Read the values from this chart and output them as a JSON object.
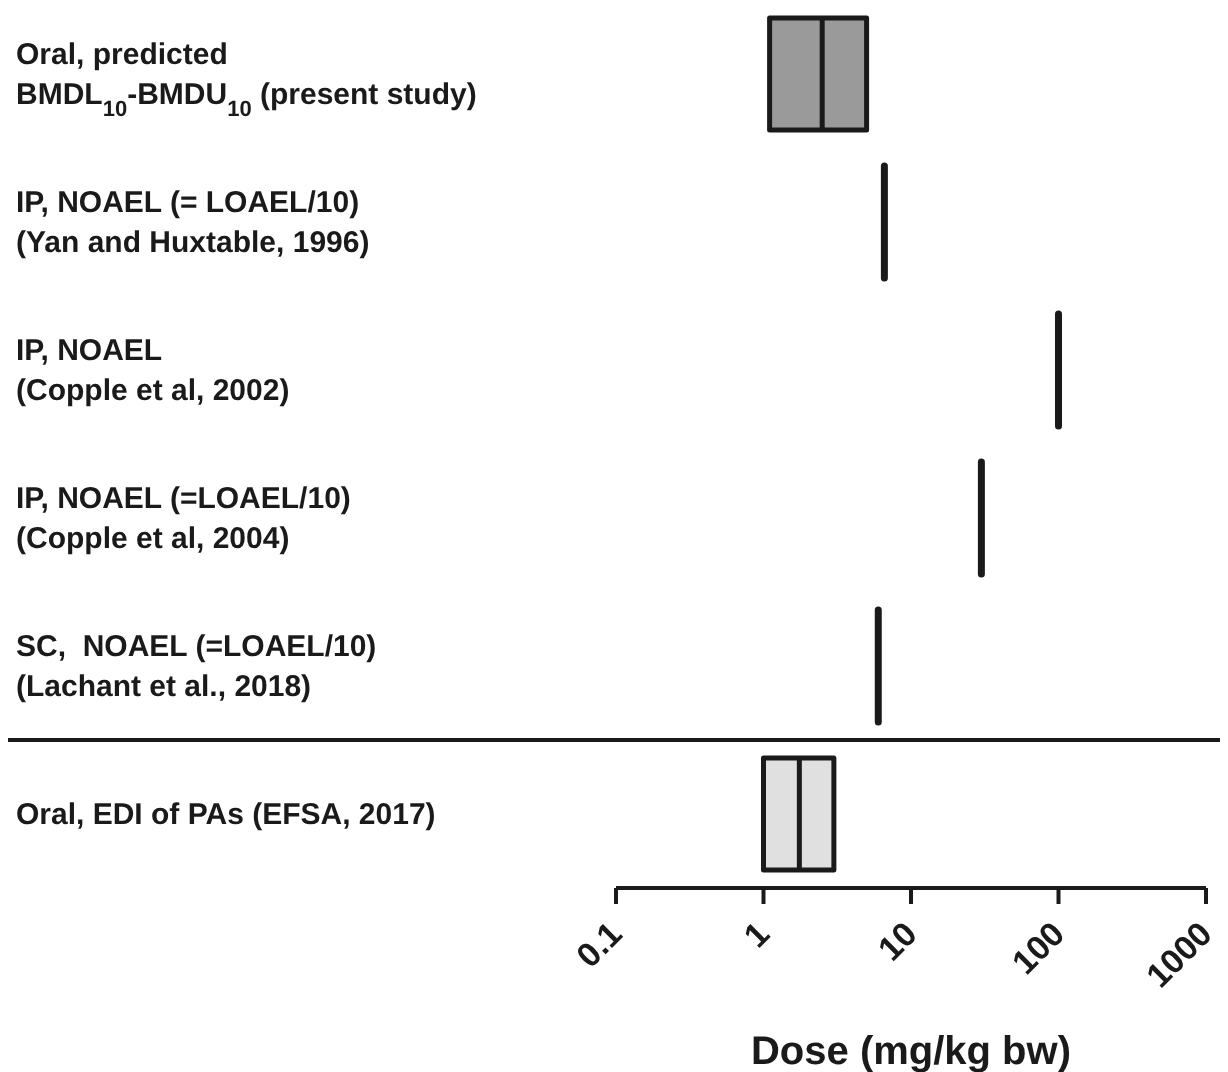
{
  "chart_data": {
    "type": "box",
    "orientation": "horizontal",
    "log": "x",
    "xlabel": "Dose (mg/kg bw)",
    "xlim": [
      0.1,
      1000
    ],
    "xticks": [
      0.1,
      1,
      10,
      100,
      1000
    ],
    "grid": false,
    "categories": [
      "Oral, predicted\nBMDL$_{10}$-BMDU$_{10}$ (present study)",
      "IP, NOAEL (= LOAEL/10)\n(Yan and Huxtable, 1996)",
      "IP, NOAEL\n(Copple et al, 2002)",
      "IP, NOAEL (=LOAEL/10)\n(Copple et al, 2004)",
      "SC,  NOAEL (=LOAEL/10)\n(Lachant et al., 2018)",
      "Oral, EDI of PAs (EFSA, 2017)"
    ],
    "colors": [
      "#9a9a9a",
      "#1a1a1a",
      "#1a1a1a",
      "#1a1a1a",
      "#1a1a1a",
      "#e0e0e0"
    ],
    "boxes": [
      {
        "low": 1.1,
        "q1": 1.1,
        "median": 2.5,
        "q3": 5,
        "high": 5
      },
      {
        "low": 6.6,
        "q1": 6.6,
        "median": 6.6,
        "q3": 6.6,
        "high": 6.6
      },
      {
        "low": 100,
        "q1": 100,
        "median": 100,
        "q3": 100,
        "high": 100
      },
      {
        "low": 30,
        "q1": 30,
        "median": 30,
        "q3": 30,
        "high": 30
      },
      {
        "low": 6,
        "q1": 6,
        "median": 6,
        "q3": 6,
        "high": 6
      },
      {
        "low": 1,
        "q1": 1,
        "median": 1.75,
        "q3": 3,
        "high": 3
      }
    ]
  }
}
